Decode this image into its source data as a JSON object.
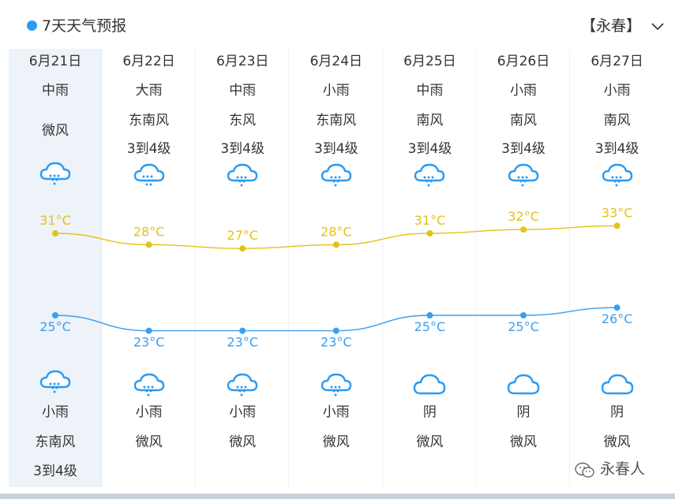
{
  "header": {
    "title": "7天天气预报",
    "city": "【永春】",
    "accent": "#2a9bf2"
  },
  "days": [
    {
      "date": "6月21日",
      "day_weather": "中雨",
      "day_wind": "微风",
      "day_level": "",
      "day_icon": "rain-cloud-icon",
      "night_weather": "小雨",
      "night_wind": "东南风",
      "night_level": "3到4级",
      "night_icon": "rain-cloud-icon"
    },
    {
      "date": "6月22日",
      "day_weather": "大雨",
      "day_wind": "东南风",
      "day_level": "3到4级",
      "day_icon": "heavy-rain-cloud-icon",
      "night_weather": "小雨",
      "night_wind": "微风",
      "night_level": "",
      "night_icon": "rain-cloud-icon"
    },
    {
      "date": "6月23日",
      "day_weather": "中雨",
      "day_wind": "东风",
      "day_level": "3到4级",
      "day_icon": "rain-cloud-icon",
      "night_weather": "小雨",
      "night_wind": "微风",
      "night_level": "",
      "night_icon": "rain-cloud-icon"
    },
    {
      "date": "6月24日",
      "day_weather": "小雨",
      "day_wind": "东南风",
      "day_level": "3到4级",
      "day_icon": "rain-cloud-icon",
      "night_weather": "小雨",
      "night_wind": "微风",
      "night_level": "",
      "night_icon": "rain-cloud-icon"
    },
    {
      "date": "6月25日",
      "day_weather": "中雨",
      "day_wind": "南风",
      "day_level": "3到4级",
      "day_icon": "rain-cloud-icon",
      "night_weather": "阴",
      "night_wind": "微风",
      "night_level": "",
      "night_icon": "cloud-icon"
    },
    {
      "date": "6月26日",
      "day_weather": "小雨",
      "day_wind": "南风",
      "day_level": "3到4级",
      "day_icon": "rain-cloud-icon",
      "night_weather": "阴",
      "night_wind": "微风",
      "night_level": "",
      "night_icon": "cloud-icon"
    },
    {
      "date": "6月27日",
      "day_weather": "小雨",
      "day_wind": "南风",
      "day_level": "3到4级",
      "day_icon": "rain-cloud-icon",
      "night_weather": "阴",
      "night_wind": "微风",
      "night_level": "",
      "night_icon": "cloud-icon"
    }
  ],
  "temperatures": {
    "high": [
      31,
      28,
      27,
      28,
      31,
      32,
      33
    ],
    "low": [
      25,
      23,
      23,
      23,
      25,
      25,
      26
    ],
    "labels_high": [
      "31°C",
      "28°C",
      "27°C",
      "28°C",
      "31°C",
      "32°C",
      "33°C"
    ],
    "labels_low": [
      "25°C",
      "23°C",
      "23°C",
      "23°C",
      "25°C",
      "25°C",
      "26°C"
    ],
    "high_color": "#e2c21a",
    "low_color": "#3a9ff0"
  },
  "colors": {
    "today_bg": "#edf3f8",
    "icon_blue": "#2a9bf2"
  },
  "watermark": {
    "text": "永春人",
    "icon": "wechat-icon"
  }
}
